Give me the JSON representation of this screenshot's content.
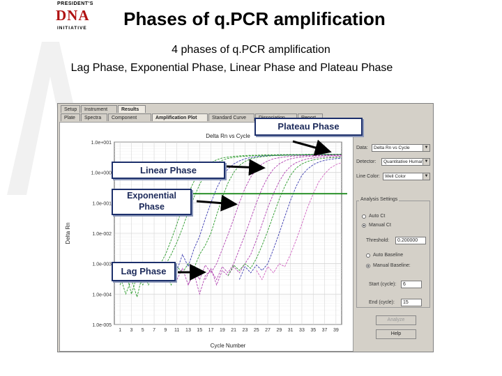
{
  "slide": {
    "title": "Phases of q.PCR amplification",
    "subtitle_line1": "4 phases of q.PCR amplification",
    "subtitle_line2": "Lag Phase, Exponential Phase, Linear Phase and Plateau Phase"
  },
  "logo": {
    "line1": "PRESIDENT'S",
    "line2": "DNA",
    "line3": "INITIATIVE",
    "color": "#b01212"
  },
  "app": {
    "tabs_top": [
      "Setup",
      "Instrument",
      "Results"
    ],
    "tabs_bottom": [
      "Plate",
      "Spectra",
      "Component",
      "Amplification Plot",
      "Standard Curve",
      "Dissociation",
      "Report"
    ],
    "active_top": "Results",
    "active_bottom": "Amplification Plot"
  },
  "chart_data": {
    "type": "line",
    "title": "Delta Rn vs Cycle",
    "xlabel": "Cycle Number",
    "ylabel": "Delta Rn",
    "y_scale": "log",
    "ylim": [
      1e-05,
      10
    ],
    "xlim": [
      0,
      40
    ],
    "yticks": [
      "1.0e+001",
      "1.0e+000",
      "1.0e-001",
      "1.0e-002",
      "1.0e-003",
      "1.0e-004",
      "1.0e-005"
    ],
    "xticks": [
      "1",
      "3",
      "5",
      "7",
      "9",
      "11",
      "13",
      "15",
      "17",
      "19",
      "21",
      "23",
      "25",
      "27",
      "29",
      "31",
      "33",
      "35",
      "37",
      "39"
    ],
    "threshold": 0.2,
    "grid": true,
    "series": [
      {
        "color": "#2a9a2a",
        "values": [
          [
            1,
            0.0004
          ],
          [
            2,
            0.0001
          ],
          [
            3,
            0.0003
          ],
          [
            4,
            8e-05
          ],
          [
            5,
            0.0005
          ],
          [
            6,
            0.0002
          ],
          [
            7,
            0.0006
          ],
          [
            8,
            0.0009
          ],
          [
            9,
            0.002
          ],
          [
            10,
            0.006
          ],
          [
            11,
            0.02
          ],
          [
            12,
            0.07
          ],
          [
            13,
            0.2
          ],
          [
            14,
            0.5
          ],
          [
            15,
            1
          ],
          [
            16,
            1.6
          ],
          [
            17,
            2.1
          ],
          [
            18,
            2.6
          ],
          [
            19,
            3
          ],
          [
            20,
            3.2
          ],
          [
            21,
            3.4
          ],
          [
            22,
            3.5
          ],
          [
            23,
            3.6
          ],
          [
            24,
            3.65
          ],
          [
            25,
            3.7
          ],
          [
            26,
            3.75
          ],
          [
            27,
            3.8
          ],
          [
            28,
            3.8
          ],
          [
            29,
            3.85
          ],
          [
            30,
            3.85
          ],
          [
            31,
            3.9
          ],
          [
            32,
            3.9
          ],
          [
            33,
            3.9
          ],
          [
            34,
            3.95
          ],
          [
            35,
            3.95
          ],
          [
            36,
            3.95
          ],
          [
            37,
            4
          ],
          [
            38,
            4
          ],
          [
            39,
            4
          ],
          [
            40,
            4
          ]
        ]
      },
      {
        "color": "#2a9a2a",
        "values": [
          [
            1,
            0.0002
          ],
          [
            2,
            0.0006
          ],
          [
            3,
            0.0001
          ],
          [
            4,
            0.0004
          ],
          [
            5,
            0.0002
          ],
          [
            6,
            0.0005
          ],
          [
            7,
            0.0008
          ],
          [
            8,
            0.0004
          ],
          [
            9,
            0.0009
          ],
          [
            10,
            0.002
          ],
          [
            11,
            0.005
          ],
          [
            12,
            0.015
          ],
          [
            13,
            0.05
          ],
          [
            14,
            0.15
          ],
          [
            15,
            0.4
          ],
          [
            16,
            0.9
          ],
          [
            17,
            1.5
          ],
          [
            18,
            2
          ],
          [
            19,
            2.5
          ],
          [
            20,
            2.9
          ],
          [
            21,
            3.1
          ],
          [
            22,
            3.3
          ],
          [
            23,
            3.4
          ],
          [
            24,
            3.5
          ],
          [
            25,
            3.55
          ],
          [
            26,
            3.6
          ],
          [
            27,
            3.65
          ],
          [
            28,
            3.7
          ],
          [
            29,
            3.7
          ],
          [
            30,
            3.75
          ],
          [
            31,
            3.75
          ],
          [
            32,
            3.8
          ],
          [
            33,
            3.8
          ],
          [
            34,
            3.8
          ],
          [
            35,
            3.85
          ],
          [
            36,
            3.85
          ],
          [
            37,
            3.85
          ],
          [
            38,
            3.9
          ],
          [
            39,
            3.9
          ],
          [
            40,
            3.9
          ]
        ]
      },
      {
        "color": "#3a3ab0",
        "values": [
          [
            7,
            0.0003
          ],
          [
            8,
            0.0006
          ],
          [
            9,
            0.0004
          ],
          [
            10,
            0.0009
          ],
          [
            11,
            0.0006
          ],
          [
            12,
            0.002
          ],
          [
            13,
            0.0008
          ],
          [
            14,
            0.003
          ],
          [
            15,
            0.008
          ],
          [
            16,
            0.03
          ],
          [
            17,
            0.1
          ],
          [
            18,
            0.3
          ],
          [
            19,
            0.7
          ],
          [
            20,
            1.3
          ],
          [
            21,
            1.9
          ],
          [
            22,
            2.4
          ],
          [
            23,
            2.8
          ],
          [
            24,
            3.1
          ],
          [
            25,
            3.3
          ],
          [
            26,
            3.45
          ],
          [
            27,
            3.55
          ],
          [
            28,
            3.6
          ],
          [
            29,
            3.65
          ],
          [
            30,
            3.7
          ],
          [
            31,
            3.75
          ],
          [
            32,
            3.75
          ],
          [
            33,
            3.8
          ],
          [
            34,
            3.8
          ],
          [
            35,
            3.8
          ],
          [
            36,
            3.85
          ],
          [
            37,
            3.85
          ],
          [
            38,
            3.85
          ],
          [
            39,
            3.85
          ],
          [
            40,
            3.9
          ]
        ]
      },
      {
        "color": "#2a9a2a",
        "values": [
          [
            9,
            0.0005
          ],
          [
            10,
            0.0002
          ],
          [
            11,
            0.0008
          ],
          [
            12,
            0.0005
          ],
          [
            13,
            0.001
          ],
          [
            14,
            0.0007
          ],
          [
            15,
            0.002
          ],
          [
            16,
            0.004
          ],
          [
            17,
            0.01
          ],
          [
            18,
            0.04
          ],
          [
            19,
            0.15
          ],
          [
            20,
            0.45
          ],
          [
            21,
            1
          ],
          [
            22,
            1.7
          ],
          [
            23,
            2.3
          ],
          [
            24,
            2.8
          ],
          [
            25,
            3.1
          ],
          [
            26,
            3.3
          ],
          [
            27,
            3.45
          ],
          [
            28,
            3.55
          ],
          [
            29,
            3.6
          ],
          [
            30,
            3.65
          ],
          [
            31,
            3.7
          ],
          [
            32,
            3.7
          ],
          [
            33,
            3.75
          ],
          [
            34,
            3.75
          ],
          [
            35,
            3.8
          ],
          [
            36,
            3.8
          ],
          [
            37,
            3.8
          ],
          [
            38,
            3.8
          ],
          [
            39,
            3.85
          ],
          [
            40,
            3.85
          ]
        ]
      },
      {
        "color": "#b040b0",
        "values": [
          [
            11,
            0.0003
          ],
          [
            12,
            0.0007
          ],
          [
            13,
            0.0002
          ],
          [
            14,
            0.0006
          ],
          [
            15,
            0.0003
          ],
          [
            16,
            0.0009
          ],
          [
            17,
            0.0005
          ],
          [
            18,
            0.001
          ],
          [
            19,
            0.003
          ],
          [
            20,
            0.009
          ],
          [
            21,
            0.03
          ],
          [
            22,
            0.1
          ],
          [
            23,
            0.3
          ],
          [
            24,
            0.7
          ],
          [
            25,
            1.3
          ],
          [
            26,
            1.9
          ],
          [
            27,
            2.4
          ],
          [
            28,
            2.8
          ],
          [
            29,
            3.05
          ],
          [
            30,
            3.25
          ],
          [
            31,
            3.4
          ],
          [
            32,
            3.5
          ],
          [
            33,
            3.55
          ],
          [
            34,
            3.6
          ],
          [
            35,
            3.65
          ],
          [
            36,
            3.65
          ],
          [
            37,
            3.7
          ],
          [
            38,
            3.7
          ],
          [
            39,
            3.75
          ],
          [
            40,
            3.75
          ]
        ]
      },
      {
        "color": "#b040b0",
        "values": [
          [
            13,
            0.0002
          ],
          [
            14,
            0.0005
          ],
          [
            15,
            0.0001
          ],
          [
            16,
            0.0004
          ],
          [
            17,
            0.0006
          ],
          [
            18,
            0.0003
          ],
          [
            19,
            0.0008
          ],
          [
            20,
            0.0005
          ],
          [
            21,
            0.001
          ],
          [
            22,
            0.003
          ],
          [
            23,
            0.009
          ],
          [
            24,
            0.03
          ],
          [
            25,
            0.1
          ],
          [
            26,
            0.3
          ],
          [
            27,
            0.7
          ],
          [
            28,
            1.3
          ],
          [
            29,
            1.9
          ],
          [
            30,
            2.4
          ],
          [
            31,
            2.8
          ],
          [
            32,
            3.05
          ],
          [
            33,
            3.25
          ],
          [
            34,
            3.35
          ],
          [
            35,
            3.45
          ],
          [
            36,
            3.5
          ],
          [
            37,
            3.55
          ],
          [
            38,
            3.6
          ],
          [
            39,
            3.6
          ],
          [
            40,
            3.65
          ]
        ]
      },
      {
        "color": "#b040b0",
        "values": [
          [
            16,
            0.0003
          ],
          [
            17,
            0.0007
          ],
          [
            18,
            0.0002
          ],
          [
            19,
            0.0006
          ],
          [
            20,
            0.0004
          ],
          [
            21,
            0.0008
          ],
          [
            22,
            0.0005
          ],
          [
            23,
            0.001
          ],
          [
            24,
            0.002
          ],
          [
            25,
            0.006
          ],
          [
            26,
            0.02
          ],
          [
            27,
            0.07
          ],
          [
            28,
            0.2
          ],
          [
            29,
            0.5
          ],
          [
            30,
            1
          ],
          [
            31,
            1.6
          ],
          [
            32,
            2.1
          ],
          [
            33,
            2.5
          ],
          [
            34,
            2.8
          ],
          [
            35,
            3
          ],
          [
            36,
            3.15
          ],
          [
            37,
            3.25
          ],
          [
            38,
            3.3
          ],
          [
            39,
            3.35
          ],
          [
            40,
            3.4
          ]
        ]
      },
      {
        "color": "#2a9a2a",
        "values": [
          [
            20,
            0.0004
          ],
          [
            21,
            0.0009
          ],
          [
            22,
            0.0006
          ],
          [
            23,
            0.001
          ],
          [
            24,
            0.0007
          ],
          [
            25,
            0.0015
          ],
          [
            26,
            0.004
          ],
          [
            27,
            0.012
          ],
          [
            28,
            0.04
          ],
          [
            29,
            0.13
          ],
          [
            30,
            0.35
          ],
          [
            31,
            0.8
          ],
          [
            32,
            1.4
          ],
          [
            33,
            1.9
          ],
          [
            34,
            2.3
          ],
          [
            35,
            2.6
          ],
          [
            36,
            2.8
          ],
          [
            37,
            2.95
          ],
          [
            38,
            3.05
          ],
          [
            39,
            3.1
          ],
          [
            40,
            3.15
          ]
        ]
      },
      {
        "color": "#3a3ab0",
        "values": [
          [
            22,
            0.0003
          ],
          [
            23,
            0.0008
          ],
          [
            24,
            0.0005
          ],
          [
            25,
            0.0009
          ],
          [
            26,
            0.0006
          ],
          [
            27,
            0.001
          ],
          [
            28,
            0.003
          ],
          [
            29,
            0.01
          ],
          [
            30,
            0.035
          ],
          [
            31,
            0.12
          ],
          [
            32,
            0.35
          ],
          [
            33,
            0.8
          ],
          [
            34,
            1.3
          ],
          [
            35,
            1.8
          ],
          [
            36,
            2.2
          ],
          [
            37,
            2.5
          ],
          [
            38,
            2.7
          ],
          [
            39,
            2.85
          ],
          [
            40,
            2.95
          ]
        ]
      },
      {
        "color": "#d060c0",
        "values": [
          [
            25,
            0.0006
          ],
          [
            26,
            0.0003
          ],
          [
            27,
            0.0008
          ],
          [
            28,
            0.0005
          ],
          [
            29,
            0.001
          ],
          [
            30,
            0.0008
          ],
          [
            31,
            0.002
          ],
          [
            32,
            0.006
          ],
          [
            33,
            0.02
          ],
          [
            34,
            0.07
          ],
          [
            35,
            0.2
          ],
          [
            36,
            0.5
          ],
          [
            37,
            0.9
          ],
          [
            38,
            1.4
          ],
          [
            39,
            1.8
          ],
          [
            40,
            2.1
          ]
        ]
      }
    ]
  },
  "callouts": {
    "plateau": "Plateau Phase",
    "linear": "Linear Phase",
    "exponential_line1": "Exponential",
    "exponential_line2": "Phase",
    "lag": "Lag Phase"
  },
  "settings": {
    "data_label": "Data:",
    "data_value": "Delta Rn vs Cycle",
    "detector_label": "Detector:",
    "detector_value": "Quantitative Human",
    "line_color_label": "Line Color:",
    "line_color_value": "Well Color",
    "analysis_settings_label": "Analysis Settings",
    "auto_ct": "Auto Ct",
    "manual_ct": "Manual Ct",
    "threshold_label": "Threshold:",
    "threshold_value": "0.200000",
    "auto_baseline": "Auto Baseline",
    "manual_baseline": "Manual Baseline:",
    "start_label": "Start (cycle):",
    "start_value": "6",
    "end_label": "End (cycle):",
    "end_value": "15",
    "analyze_button": "Analyze",
    "help_button": "Help"
  }
}
